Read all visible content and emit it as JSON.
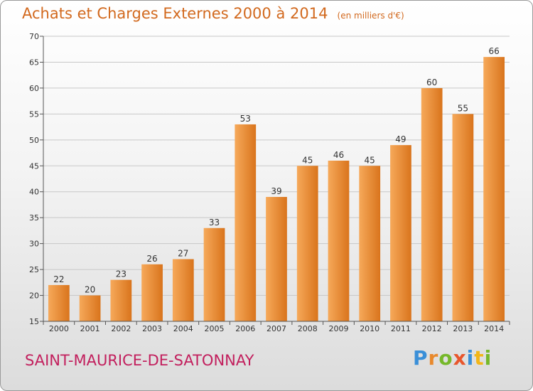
{
  "header": {
    "title": "Achats et Charges Externes 2000 à 2014",
    "unit": "(en milliers d'€)"
  },
  "footer": {
    "city": "SAINT-MAURICE-DE-SATONNAY",
    "brand": [
      "P",
      "r",
      "o",
      "x",
      "i",
      "t",
      "i"
    ]
  },
  "colors": {
    "bar_light": "#f6a95a",
    "bar_dark": "#d9741c",
    "title": "#d2691e",
    "city": "#c21f5d"
  },
  "chart_data": {
    "type": "bar",
    "title": "Achats et Charges Externes 2000 à 2014",
    "xlabel": "",
    "ylabel": "",
    "categories": [
      "2000",
      "2001",
      "2002",
      "2003",
      "2004",
      "2005",
      "2006",
      "2007",
      "2008",
      "2009",
      "2010",
      "2011",
      "2012",
      "2013",
      "2014"
    ],
    "values": [
      22,
      20,
      23,
      26,
      27,
      33,
      53,
      39,
      45,
      46,
      45,
      49,
      60,
      55,
      66
    ],
    "ylim": [
      15,
      70
    ],
    "yticks": [
      15,
      20,
      25,
      30,
      35,
      40,
      45,
      50,
      55,
      60,
      65,
      70
    ],
    "grid": true
  }
}
